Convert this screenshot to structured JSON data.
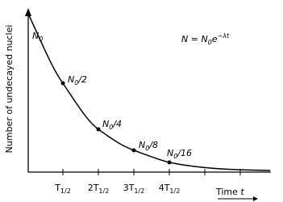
{
  "axes": {
    "y_label": "Number of undecayed nuclei",
    "x_label": {
      "text": "Time ",
      "var": "t"
    }
  },
  "equation": {
    "lhs": "N = N",
    "sub": "0",
    "base": "e",
    "exp": "−λt"
  },
  "start_label": {
    "n": "N",
    "sub": "0"
  },
  "points": [
    {
      "n": "N",
      "sub": "0",
      "rest": "/2"
    },
    {
      "n": "N",
      "sub": "0",
      "rest": "/4"
    },
    {
      "n": "N",
      "sub": "0",
      "rest": "/8"
    },
    {
      "n": "N",
      "sub": "0",
      "rest": "/16"
    }
  ],
  "ticks": [
    {
      "prefix": "",
      "t": "T",
      "sub": "1/2"
    },
    {
      "prefix": "2",
      "t": "T",
      "sub": "1/2"
    },
    {
      "prefix": "3",
      "t": "T",
      "sub": "1/2"
    },
    {
      "prefix": "4",
      "t": "T",
      "sub": "1/2"
    }
  ]
}
